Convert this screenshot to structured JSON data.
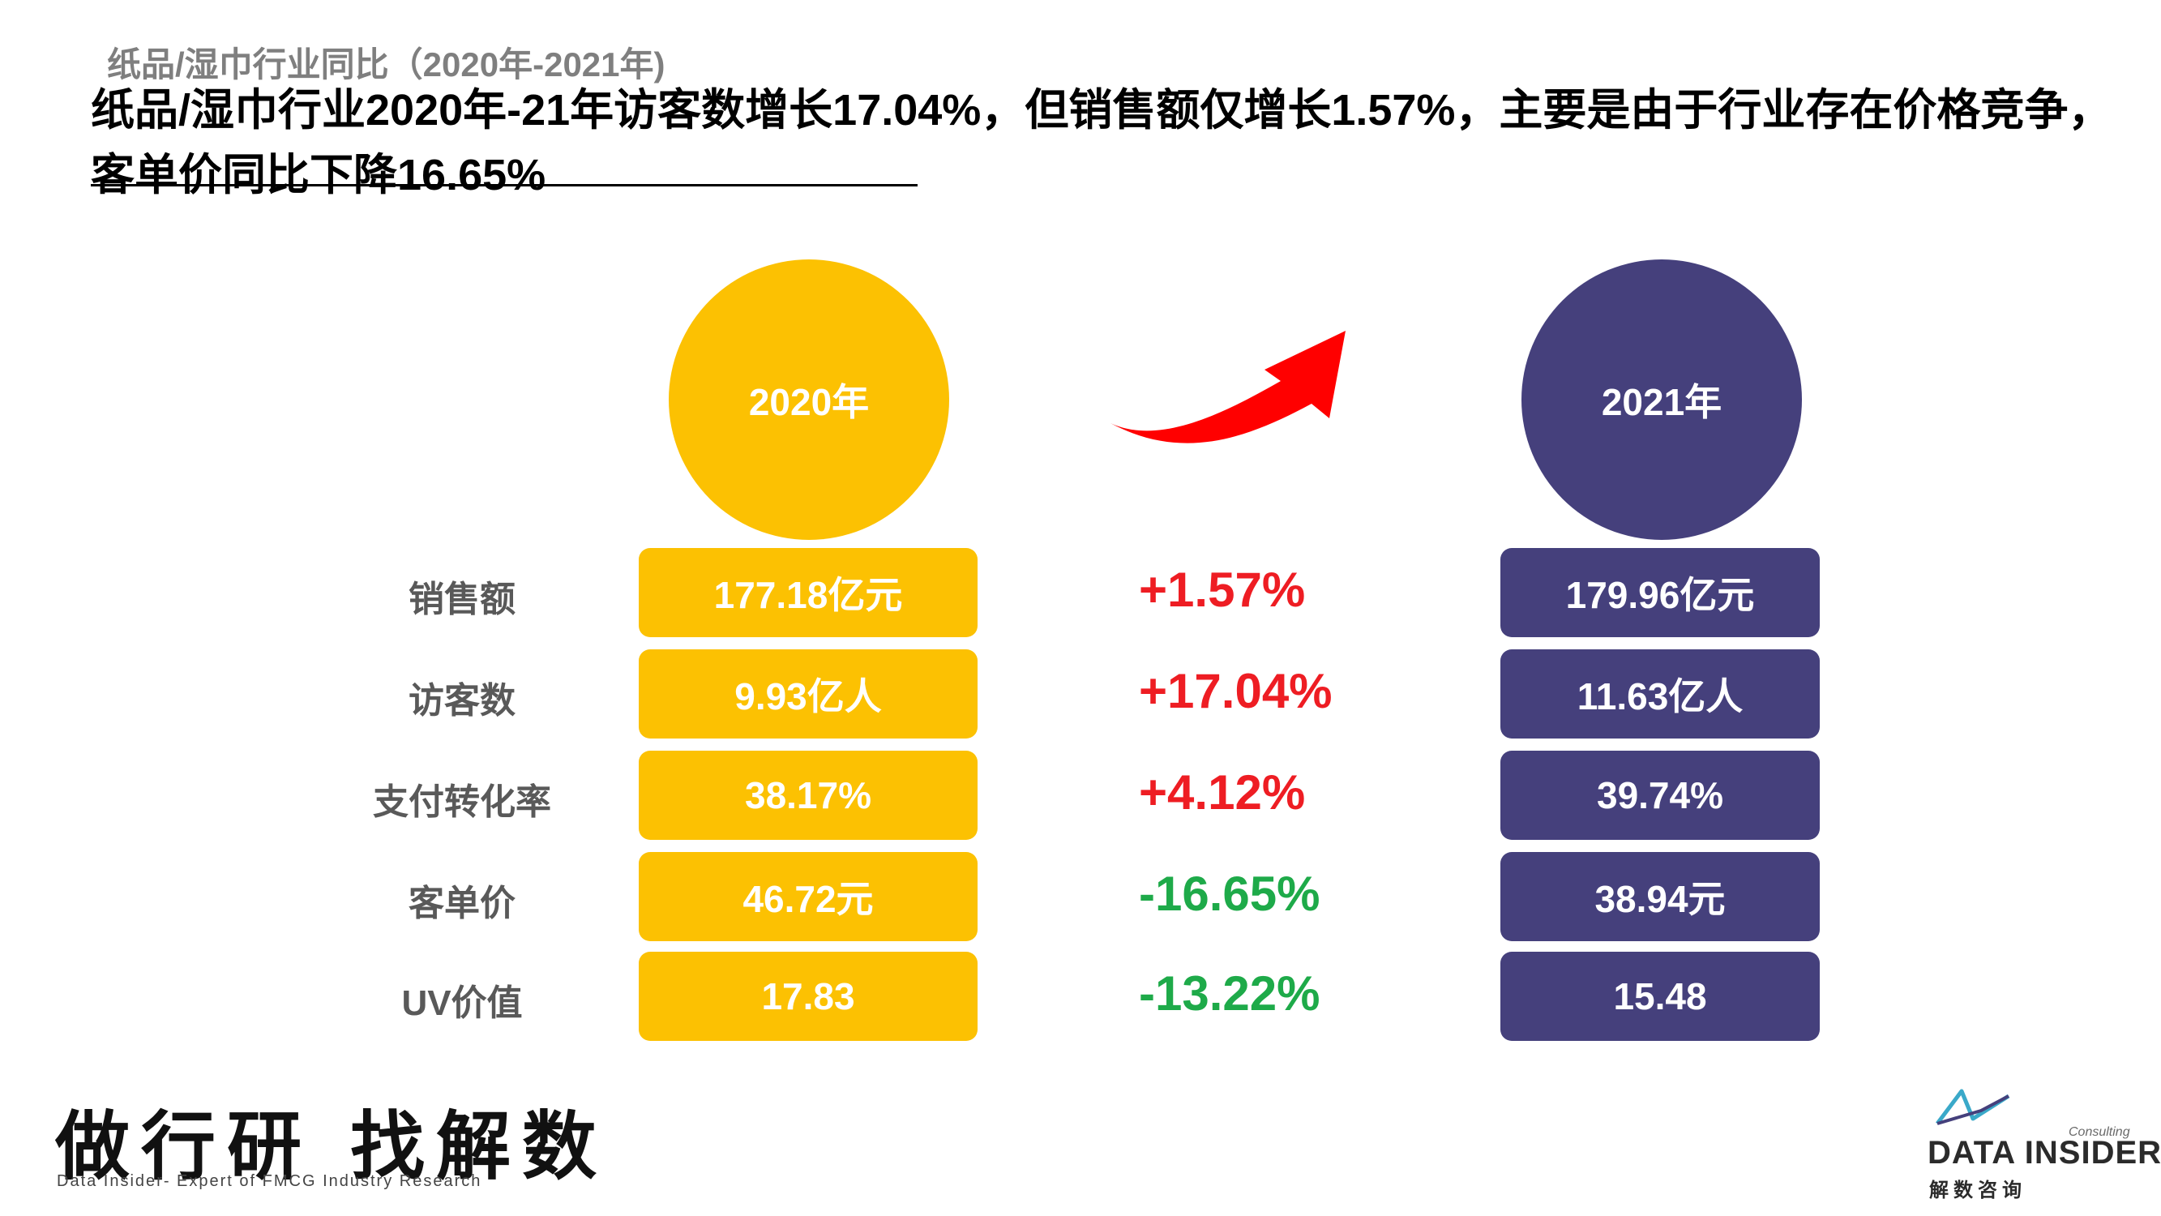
{
  "subtitle": "纸品/湿巾行业同比（2020年-2021年)",
  "headline": "纸品/湿巾行业2020年-21年访客数增长17.04%，但销售额仅增长1.57%，主要是由于行业存在价格竞争，客单价同比下降16.65%",
  "year_left": "2020年",
  "year_right": "2021年",
  "rows": [
    {
      "label": "销售额",
      "v2020": "177.18亿元",
      "change": "+1.57%",
      "v2021": "179.96亿元"
    },
    {
      "label": "访客数",
      "v2020": "9.93亿人",
      "change": "+17.04%",
      "v2021": "11.63亿人"
    },
    {
      "label": "支付转化率",
      "v2020": "38.17%",
      "change": "+4.12%",
      "v2021": "39.74%"
    },
    {
      "label": "客单价",
      "v2020": "46.72元",
      "change": "-16.65%",
      "v2021": "38.94元"
    },
    {
      "label": "UV价值",
      "v2020": "17.83",
      "change": "-13.22%",
      "v2021": "15.48"
    }
  ],
  "footer": {
    "slogan": "做行研 找解数",
    "tagline": "Data Insider- Expert of FMCG Industry Research"
  },
  "logo": {
    "consulting": "Consulting",
    "name": "DATA INSIDER",
    "cn": "解数咨询"
  },
  "colors": {
    "yellow": "#fcc102",
    "purple": "#45407c",
    "positive": "#ee1d23",
    "negative": "#1eaa49",
    "arrow": "#ff0000"
  },
  "icons": {
    "arrow": "curved-arrow-up-right-icon",
    "logo": "data-insider-logo-icon"
  }
}
